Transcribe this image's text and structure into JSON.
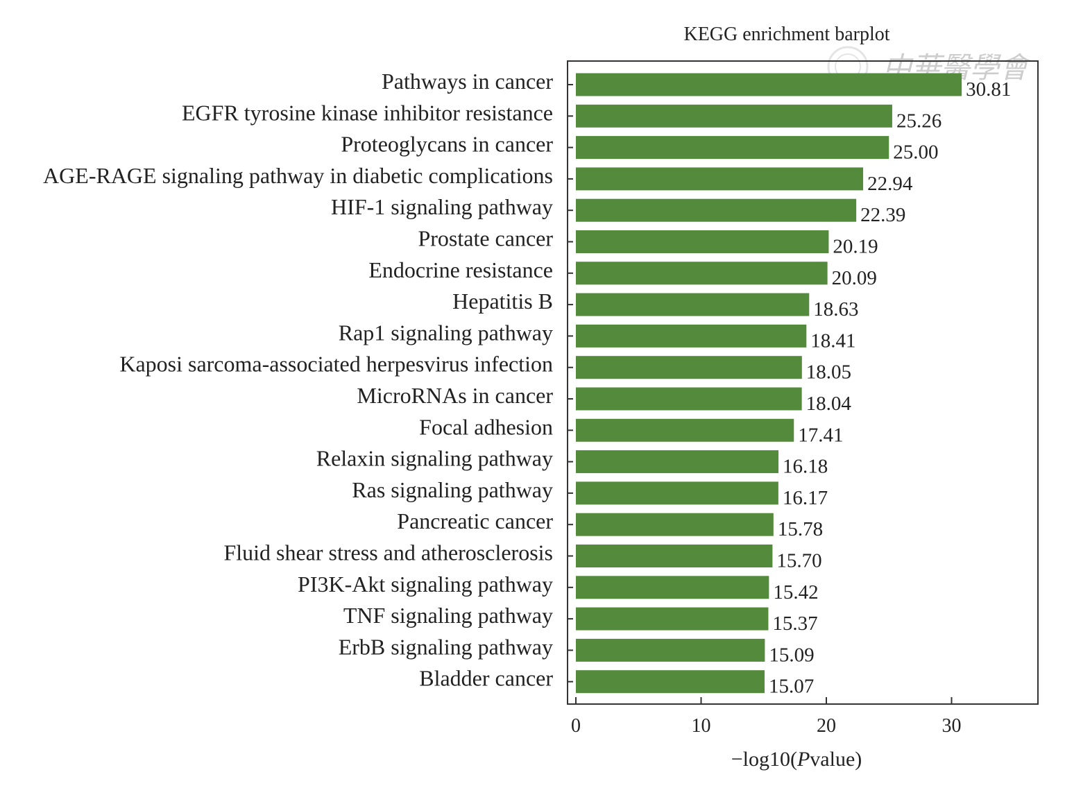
{
  "chart_data": {
    "type": "bar",
    "orientation": "horizontal",
    "title": "KEGG enrichment barplot",
    "xlabel_prefix": "−log10(",
    "xlabel_italic": "P",
    "xlabel_suffix": "value)",
    "ylabel": "",
    "xlim": [
      0,
      37
    ],
    "xticks": [
      0,
      10,
      20,
      30
    ],
    "bar_color": "#548a3c",
    "grid": false,
    "legend": "none",
    "categories": [
      "Pathways in cancer",
      "EGFR tyrosine kinase inhibitor resistance",
      "Proteoglycans in cancer",
      "AGE-RAGE signaling pathway in diabetic complications",
      "HIF-1 signaling pathway",
      "Prostate cancer",
      "Endocrine resistance",
      "Hepatitis B",
      "Rap1 signaling pathway",
      "Kaposi sarcoma-associated herpesvirus infection",
      "MicroRNAs in cancer",
      "Focal adhesion",
      "Relaxin signaling pathway",
      "Ras signaling pathway",
      "Pancreatic cancer",
      "Fluid shear stress and atherosclerosis",
      "PI3K-Akt signaling pathway",
      "TNF signaling pathway",
      "ErbB signaling pathway",
      "Bladder cancer"
    ],
    "values": [
      30.81,
      25.26,
      25.0,
      22.94,
      22.39,
      20.19,
      20.09,
      18.63,
      18.41,
      18.05,
      18.04,
      17.41,
      16.18,
      16.17,
      15.78,
      15.7,
      15.42,
      15.37,
      15.09,
      15.07
    ],
    "value_labels": [
      "30.81",
      "25.26",
      "25.00",
      "22.94",
      "22.39",
      "20.19",
      "20.09",
      "18.63",
      "18.41",
      "18.05",
      "18.04",
      "17.41",
      "16.18",
      "16.17",
      "15.78",
      "15.70",
      "15.42",
      "15.37",
      "15.09",
      "15.07"
    ]
  },
  "watermark": {
    "text": "中華醫學會"
  }
}
